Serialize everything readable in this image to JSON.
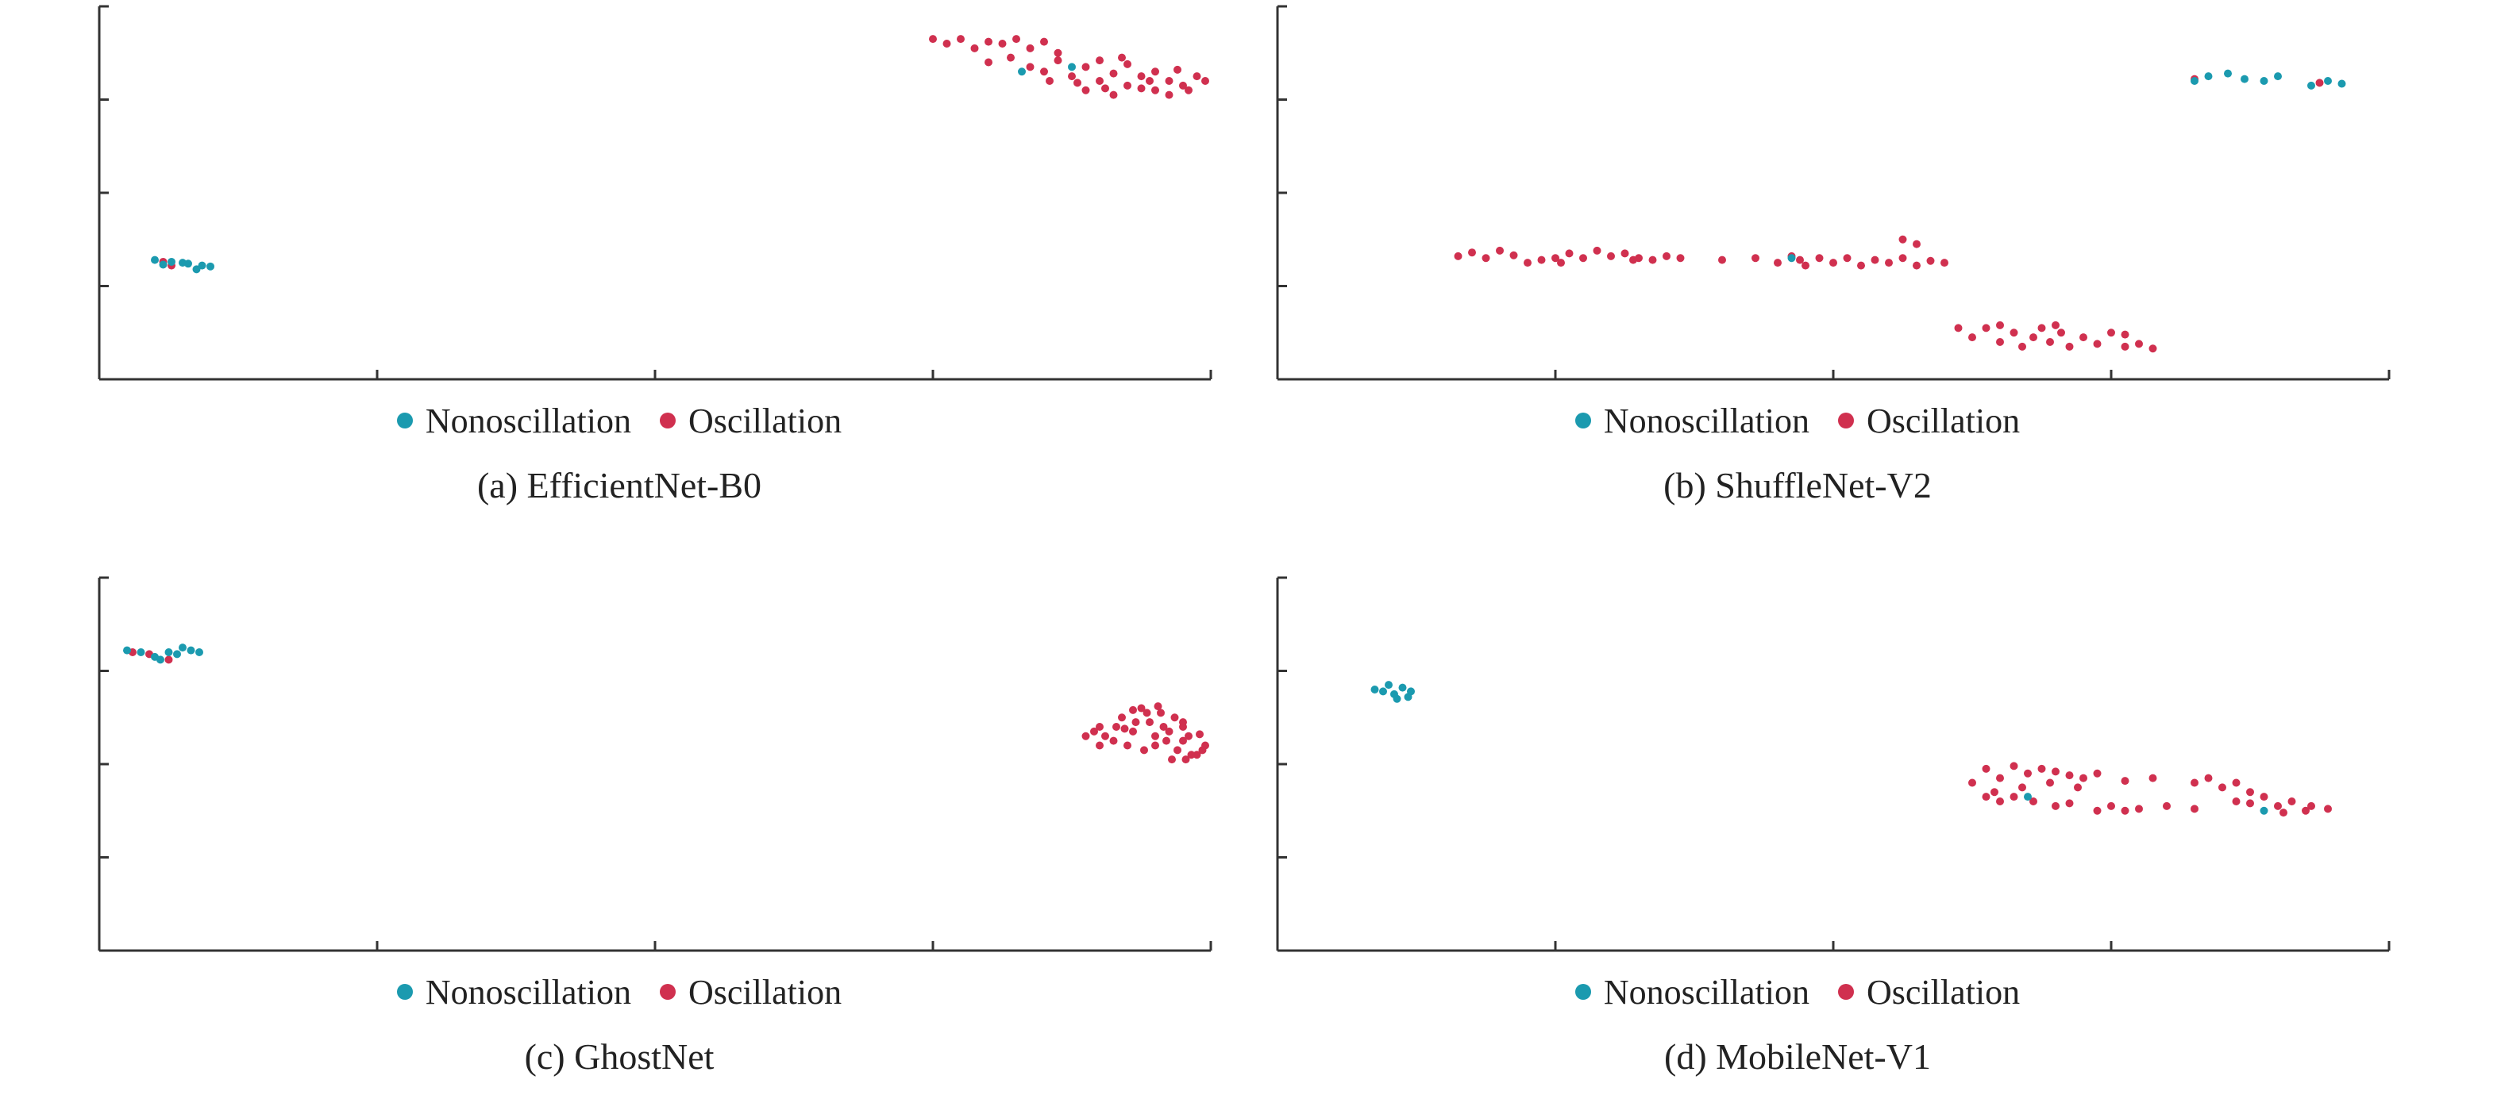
{
  "colors": {
    "nonoscillation": "#1b9aaf",
    "oscillation": "#d0304f",
    "axis": "#333333"
  },
  "legend_labels": {
    "nonoscillation": "Nonoscillation",
    "oscillation": "Oscillation"
  },
  "panels": [
    {
      "caption": "(a) EfficientNet-B0"
    },
    {
      "caption": "(b) ShuffleNet-V2"
    },
    {
      "caption": "(c) GhostNet"
    },
    {
      "caption": "(d) MobileNet-V1"
    }
  ],
  "chart_data": [
    {
      "type": "scatter",
      "title": "(a) EfficientNet-B0",
      "xlim": [
        0,
        4
      ],
      "ylim": [
        0,
        4
      ],
      "xticks": [
        0,
        1,
        2,
        3,
        4
      ],
      "yticks": [
        0,
        1,
        2,
        3,
        4
      ],
      "tick_labels_shown": false,
      "series": [
        {
          "name": "Nonoscillation",
          "points": [
            [
              0.2,
              1.28
            ],
            [
              0.26,
              1.26
            ],
            [
              0.32,
              1.24
            ],
            [
              0.37,
              1.22
            ],
            [
              0.4,
              1.21
            ],
            [
              0.3,
              1.25
            ],
            [
              0.23,
              1.23
            ],
            [
              0.35,
              1.18
            ],
            [
              3.32,
              3.3
            ],
            [
              3.5,
              3.35
            ]
          ]
        },
        {
          "name": "Oscillation",
          "points": [
            [
              3.0,
              3.65
            ],
            [
              3.05,
              3.6
            ],
            [
              3.1,
              3.65
            ],
            [
              3.15,
              3.55
            ],
            [
              3.2,
              3.62
            ],
            [
              3.25,
              3.6
            ],
            [
              3.3,
              3.65
            ],
            [
              3.35,
              3.55
            ],
            [
              3.4,
              3.62
            ],
            [
              3.45,
              3.5
            ],
            [
              3.2,
              3.4
            ],
            [
              3.28,
              3.45
            ],
            [
              3.35,
              3.35
            ],
            [
              3.4,
              3.3
            ],
            [
              3.45,
              3.42
            ],
            [
              3.5,
              3.25
            ],
            [
              3.55,
              3.35
            ],
            [
              3.6,
              3.2
            ],
            [
              3.65,
              3.28
            ],
            [
              3.7,
              3.15
            ],
            [
              3.75,
              3.25
            ],
            [
              3.8,
              3.1
            ],
            [
              3.85,
              3.2
            ],
            [
              3.9,
              3.15
            ],
            [
              3.95,
              3.25
            ],
            [
              3.98,
              3.2
            ],
            [
              3.6,
              3.42
            ],
            [
              3.7,
              3.38
            ],
            [
              3.8,
              3.3
            ],
            [
              3.88,
              3.32
            ],
            [
              3.55,
              3.1
            ],
            [
              3.65,
              3.05
            ],
            [
              3.75,
              3.12
            ],
            [
              3.85,
              3.05
            ],
            [
              3.92,
              3.1
            ],
            [
              3.68,
              3.45
            ],
            [
              3.78,
              3.2
            ],
            [
              3.52,
              3.18
            ],
            [
              3.42,
              3.2
            ],
            [
              3.62,
              3.12
            ],
            [
              0.23,
              1.26
            ],
            [
              0.26,
              1.22
            ]
          ]
        }
      ]
    },
    {
      "type": "scatter",
      "title": "(b) ShuffleNet-V2",
      "xlim": [
        0,
        4
      ],
      "ylim": [
        0,
        4
      ],
      "xticks": [
        0,
        1,
        2,
        3,
        4
      ],
      "yticks": [
        0,
        1,
        2,
        3,
        4
      ],
      "tick_labels_shown": false,
      "series": [
        {
          "name": "Nonoscillation",
          "points": [
            [
              3.3,
              3.2
            ],
            [
              3.35,
              3.25
            ],
            [
              3.42,
              3.28
            ],
            [
              3.48,
              3.22
            ],
            [
              3.55,
              3.2
            ],
            [
              3.6,
              3.25
            ],
            [
              3.72,
              3.15
            ],
            [
              3.78,
              3.2
            ],
            [
              3.83,
              3.17
            ],
            [
              1.85,
              1.3
            ]
          ]
        },
        {
          "name": "Oscillation",
          "points": [
            [
              0.65,
              1.32
            ],
            [
              0.7,
              1.36
            ],
            [
              0.75,
              1.3
            ],
            [
              0.8,
              1.38
            ],
            [
              0.85,
              1.33
            ],
            [
              0.9,
              1.25
            ],
            [
              0.95,
              1.28
            ],
            [
              1.0,
              1.3
            ],
            [
              1.05,
              1.35
            ],
            [
              1.1,
              1.3
            ],
            [
              1.15,
              1.38
            ],
            [
              1.2,
              1.32
            ],
            [
              1.25,
              1.35
            ],
            [
              1.3,
              1.3
            ],
            [
              1.35,
              1.28
            ],
            [
              1.4,
              1.32
            ],
            [
              1.45,
              1.3
            ],
            [
              1.6,
              1.28
            ],
            [
              1.72,
              1.3
            ],
            [
              1.8,
              1.25
            ],
            [
              1.88,
              1.28
            ],
            [
              1.9,
              1.22
            ],
            [
              1.95,
              1.3
            ],
            [
              2.0,
              1.25
            ],
            [
              2.05,
              1.3
            ],
            [
              2.1,
              1.22
            ],
            [
              2.15,
              1.28
            ],
            [
              2.2,
              1.25
            ],
            [
              2.25,
              1.3
            ],
            [
              2.3,
              1.22
            ],
            [
              2.35,
              1.27
            ],
            [
              2.4,
              1.25
            ],
            [
              1.02,
              1.25
            ],
            [
              1.28,
              1.28
            ],
            [
              1.85,
              1.32
            ],
            [
              2.25,
              1.5
            ],
            [
              2.3,
              1.45
            ],
            [
              2.45,
              0.55
            ],
            [
              2.5,
              0.45
            ],
            [
              2.55,
              0.55
            ],
            [
              2.6,
              0.4
            ],
            [
              2.65,
              0.5
            ],
            [
              2.68,
              0.35
            ],
            [
              2.72,
              0.45
            ],
            [
              2.75,
              0.55
            ],
            [
              2.78,
              0.4
            ],
            [
              2.82,
              0.5
            ],
            [
              2.85,
              0.35
            ],
            [
              2.9,
              0.45
            ],
            [
              2.95,
              0.38
            ],
            [
              3.0,
              0.5
            ],
            [
              3.05,
              0.35
            ],
            [
              3.1,
              0.38
            ],
            [
              3.15,
              0.33
            ],
            [
              2.6,
              0.58
            ],
            [
              2.8,
              0.58
            ],
            [
              3.05,
              0.48
            ],
            [
              3.75,
              3.18
            ],
            [
              3.3,
              3.22
            ]
          ]
        }
      ]
    },
    {
      "type": "scatter",
      "title": "(c) GhostNet",
      "xlim": [
        0,
        4
      ],
      "ylim": [
        0,
        4
      ],
      "xticks": [
        0,
        1,
        2,
        3,
        4
      ],
      "yticks": [
        0,
        1,
        2,
        3,
        4
      ],
      "tick_labels_shown": false,
      "series": [
        {
          "name": "Nonoscillation",
          "points": [
            [
              0.1,
              3.22
            ],
            [
              0.15,
              3.2
            ],
            [
              0.2,
              3.15
            ],
            [
              0.25,
              3.2
            ],
            [
              0.3,
              3.25
            ],
            [
              0.33,
              3.22
            ],
            [
              0.36,
              3.2
            ],
            [
              0.28,
              3.18
            ],
            [
              0.22,
              3.12
            ]
          ]
        },
        {
          "name": "Oscillation",
          "points": [
            [
              0.12,
              3.2
            ],
            [
              0.18,
              3.18
            ],
            [
              0.25,
              3.12
            ],
            [
              3.55,
              2.3
            ],
            [
              3.6,
              2.4
            ],
            [
              3.65,
              2.25
            ],
            [
              3.68,
              2.5
            ],
            [
              3.72,
              2.35
            ],
            [
              3.75,
              2.6
            ],
            [
              3.78,
              2.45
            ],
            [
              3.8,
              2.2
            ],
            [
              3.82,
              2.55
            ],
            [
              3.85,
              2.35
            ],
            [
              3.88,
              2.15
            ],
            [
              3.9,
              2.45
            ],
            [
              3.92,
              2.3
            ],
            [
              3.95,
              2.1
            ],
            [
              3.98,
              2.2
            ],
            [
              3.86,
              2.05
            ],
            [
              3.7,
              2.2
            ],
            [
              3.62,
              2.3
            ],
            [
              3.73,
              2.45
            ],
            [
              3.83,
              2.4
            ],
            [
              3.9,
              2.25
            ],
            [
              3.96,
              2.32
            ],
            [
              3.58,
              2.35
            ],
            [
              3.66,
              2.4
            ],
            [
              3.77,
              2.55
            ],
            [
              3.87,
              2.5
            ],
            [
              3.93,
              2.1
            ],
            [
              3.8,
              2.3
            ],
            [
              3.69,
              2.38
            ],
            [
              3.76,
              2.15
            ],
            [
              3.84,
              2.25
            ],
            [
              3.91,
              2.05
            ],
            [
              3.97,
              2.15
            ],
            [
              3.6,
              2.2
            ],
            [
              3.72,
              2.58
            ],
            [
              3.81,
              2.62
            ],
            [
              3.9,
              2.4
            ]
          ]
        }
      ]
    },
    {
      "type": "scatter",
      "title": "(d) MobileNet-V1",
      "xlim": [
        0,
        4
      ],
      "ylim": [
        0,
        4
      ],
      "xticks": [
        0,
        1,
        2,
        3,
        4
      ],
      "yticks": [
        0,
        1,
        2,
        3,
        4
      ],
      "tick_labels_shown": false,
      "series": [
        {
          "name": "Nonoscillation",
          "points": [
            [
              0.35,
              2.8
            ],
            [
              0.4,
              2.85
            ],
            [
              0.42,
              2.75
            ],
            [
              0.45,
              2.82
            ],
            [
              0.48,
              2.78
            ],
            [
              0.43,
              2.7
            ],
            [
              0.47,
              2.72
            ],
            [
              0.38,
              2.78
            ],
            [
              2.7,
              1.65
            ],
            [
              3.55,
              1.5
            ]
          ]
        },
        {
          "name": "Oscillation",
          "points": [
            [
              2.5,
              1.8
            ],
            [
              2.55,
              1.95
            ],
            [
              2.58,
              1.7
            ],
            [
              2.6,
              1.85
            ],
            [
              2.65,
              1.98
            ],
            [
              2.68,
              1.75
            ],
            [
              2.7,
              1.9
            ],
            [
              2.75,
              1.95
            ],
            [
              2.78,
              1.8
            ],
            [
              2.8,
              1.92
            ],
            [
              2.85,
              1.88
            ],
            [
              2.88,
              1.75
            ],
            [
              2.9,
              1.85
            ],
            [
              2.95,
              1.9
            ],
            [
              2.6,
              1.6
            ],
            [
              2.65,
              1.65
            ],
            [
              2.72,
              1.6
            ],
            [
              2.8,
              1.55
            ],
            [
              2.85,
              1.58
            ],
            [
              2.95,
              1.5
            ],
            [
              3.0,
              1.55
            ],
            [
              3.05,
              1.5
            ],
            [
              3.1,
              1.52
            ],
            [
              3.2,
              1.55
            ],
            [
              3.3,
              1.8
            ],
            [
              3.35,
              1.85
            ],
            [
              3.4,
              1.75
            ],
            [
              3.45,
              1.8
            ],
            [
              3.5,
              1.7
            ],
            [
              3.55,
              1.65
            ],
            [
              3.6,
              1.55
            ],
            [
              3.65,
              1.6
            ],
            [
              3.7,
              1.5
            ],
            [
              3.72,
              1.55
            ],
            [
              3.78,
              1.52
            ],
            [
              3.5,
              1.58
            ],
            [
              3.15,
              1.85
            ],
            [
              3.05,
              1.82
            ],
            [
              2.55,
              1.65
            ],
            [
              3.62,
              1.48
            ],
            [
              3.3,
              1.52
            ],
            [
              3.45,
              1.6
            ]
          ]
        }
      ]
    }
  ]
}
